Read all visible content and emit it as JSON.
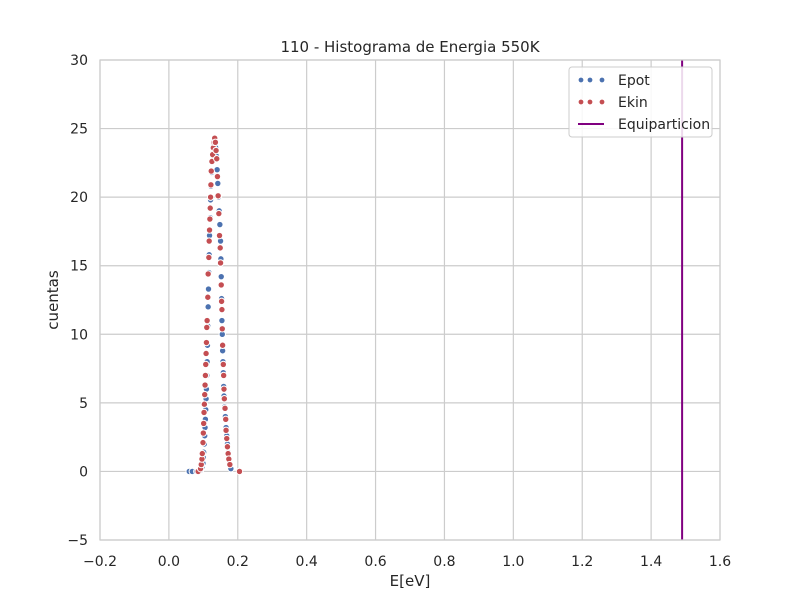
{
  "chart_data": {
    "type": "scatter",
    "title": "110 - Histograma de Energia 550K",
    "xlabel": "E[eV]",
    "ylabel": "cuentas",
    "xlim": [
      -0.2,
      1.6
    ],
    "ylim": [
      -5,
      30
    ],
    "xticks": [
      -0.2,
      0.0,
      0.2,
      0.4,
      0.6,
      0.8,
      1.0,
      1.2,
      1.4,
      1.6
    ],
    "xtick_labels": [
      "−0.2",
      "0.0",
      "0.2",
      "0.4",
      "0.6",
      "0.8",
      "1.0",
      "1.2",
      "1.4",
      "1.6"
    ],
    "yticks": [
      -5,
      0,
      5,
      10,
      15,
      20,
      25,
      30
    ],
    "ytick_labels": [
      "−5",
      "0",
      "5",
      "10",
      "15",
      "20",
      "25",
      "30"
    ],
    "grid": true,
    "legend_position": "top-right",
    "series": [
      {
        "name": "Epot",
        "kind": "scatter",
        "color": "#4c72b0",
        "points": [
          [
            0.059,
            0.0
          ],
          [
            0.068,
            0.0
          ],
          [
            0.081,
            0.0
          ],
          [
            0.092,
            0.1
          ],
          [
            0.096,
            0.3
          ],
          [
            0.099,
            0.6
          ],
          [
            0.1,
            1.0
          ],
          [
            0.101,
            1.4
          ],
          [
            0.103,
            2.0
          ],
          [
            0.104,
            2.6
          ],
          [
            0.105,
            3.2
          ],
          [
            0.106,
            3.8
          ],
          [
            0.107,
            4.5
          ],
          [
            0.108,
            5.3
          ],
          [
            0.109,
            6.0
          ],
          [
            0.11,
            7.0
          ],
          [
            0.111,
            8.0
          ],
          [
            0.112,
            9.2
          ],
          [
            0.113,
            10.6
          ],
          [
            0.114,
            12.0
          ],
          [
            0.115,
            13.3
          ],
          [
            0.116,
            14.5
          ],
          [
            0.117,
            15.8
          ],
          [
            0.118,
            17.2
          ],
          [
            0.12,
            18.5
          ],
          [
            0.121,
            19.8
          ],
          [
            0.122,
            20.8
          ],
          [
            0.124,
            21.8
          ],
          [
            0.126,
            22.6
          ],
          [
            0.128,
            23.2
          ],
          [
            0.13,
            23.8
          ],
          [
            0.132,
            24.2
          ],
          [
            0.134,
            24.2
          ],
          [
            0.136,
            23.6
          ],
          [
            0.138,
            23.0
          ],
          [
            0.14,
            22.0
          ],
          [
            0.142,
            21.0
          ],
          [
            0.144,
            20.0
          ],
          [
            0.146,
            19.0
          ],
          [
            0.148,
            18.0
          ],
          [
            0.15,
            16.8
          ],
          [
            0.151,
            15.5
          ],
          [
            0.152,
            14.2
          ],
          [
            0.153,
            12.6
          ],
          [
            0.154,
            11.0
          ],
          [
            0.155,
            10.0
          ],
          [
            0.156,
            8.8
          ],
          [
            0.157,
            8.0
          ],
          [
            0.158,
            7.2
          ],
          [
            0.159,
            6.2
          ],
          [
            0.16,
            5.5
          ],
          [
            0.162,
            4.7
          ],
          [
            0.164,
            4.0
          ],
          [
            0.166,
            3.2
          ],
          [
            0.168,
            2.6
          ],
          [
            0.17,
            2.0
          ],
          [
            0.172,
            1.4
          ],
          [
            0.174,
            0.9
          ],
          [
            0.176,
            0.5
          ],
          [
            0.18,
            0.2
          ]
        ]
      },
      {
        "name": "Ekin",
        "kind": "scatter",
        "color": "#c44e52",
        "points": [
          [
            0.085,
            0.0
          ],
          [
            0.092,
            0.2
          ],
          [
            0.094,
            0.5
          ],
          [
            0.096,
            0.9
          ],
          [
            0.097,
            1.3
          ],
          [
            0.099,
            2.1
          ],
          [
            0.1,
            2.8
          ],
          [
            0.101,
            3.5
          ],
          [
            0.102,
            4.3
          ],
          [
            0.103,
            4.9
          ],
          [
            0.104,
            5.6
          ],
          [
            0.105,
            6.3
          ],
          [
            0.106,
            7.0
          ],
          [
            0.107,
            7.8
          ],
          [
            0.108,
            8.6
          ],
          [
            0.109,
            9.4
          ],
          [
            0.11,
            10.5
          ],
          [
            0.111,
            11.0
          ],
          [
            0.113,
            12.7
          ],
          [
            0.114,
            14.4
          ],
          [
            0.116,
            15.6
          ],
          [
            0.117,
            16.8
          ],
          [
            0.118,
            17.6
          ],
          [
            0.119,
            18.4
          ],
          [
            0.12,
            19.2
          ],
          [
            0.121,
            20.0
          ],
          [
            0.122,
            20.9
          ],
          [
            0.123,
            21.9
          ],
          [
            0.125,
            22.6
          ],
          [
            0.127,
            23.1
          ],
          [
            0.129,
            23.6
          ],
          [
            0.131,
            24.0
          ],
          [
            0.133,
            24.3
          ],
          [
            0.135,
            24.0
          ],
          [
            0.137,
            23.4
          ],
          [
            0.139,
            22.8
          ],
          [
            0.141,
            21.5
          ],
          [
            0.143,
            20.1
          ],
          [
            0.145,
            18.8
          ],
          [
            0.147,
            17.2
          ],
          [
            0.149,
            16.3
          ],
          [
            0.15,
            15.2
          ],
          [
            0.152,
            13.6
          ],
          [
            0.153,
            12.4
          ],
          [
            0.154,
            11.8
          ],
          [
            0.155,
            10.4
          ],
          [
            0.156,
            9.2
          ],
          [
            0.158,
            7.8
          ],
          [
            0.159,
            7.0
          ],
          [
            0.16,
            6.0
          ],
          [
            0.161,
            5.3
          ],
          [
            0.163,
            4.6
          ],
          [
            0.165,
            3.8
          ],
          [
            0.166,
            3.0
          ],
          [
            0.168,
            2.4
          ],
          [
            0.17,
            1.8
          ],
          [
            0.172,
            1.3
          ],
          [
            0.174,
            0.9
          ],
          [
            0.177,
            0.5
          ],
          [
            0.205,
            0.0
          ]
        ]
      },
      {
        "name": "Equiparticion",
        "kind": "vline",
        "color": "#800080",
        "x": 1.49
      }
    ]
  }
}
